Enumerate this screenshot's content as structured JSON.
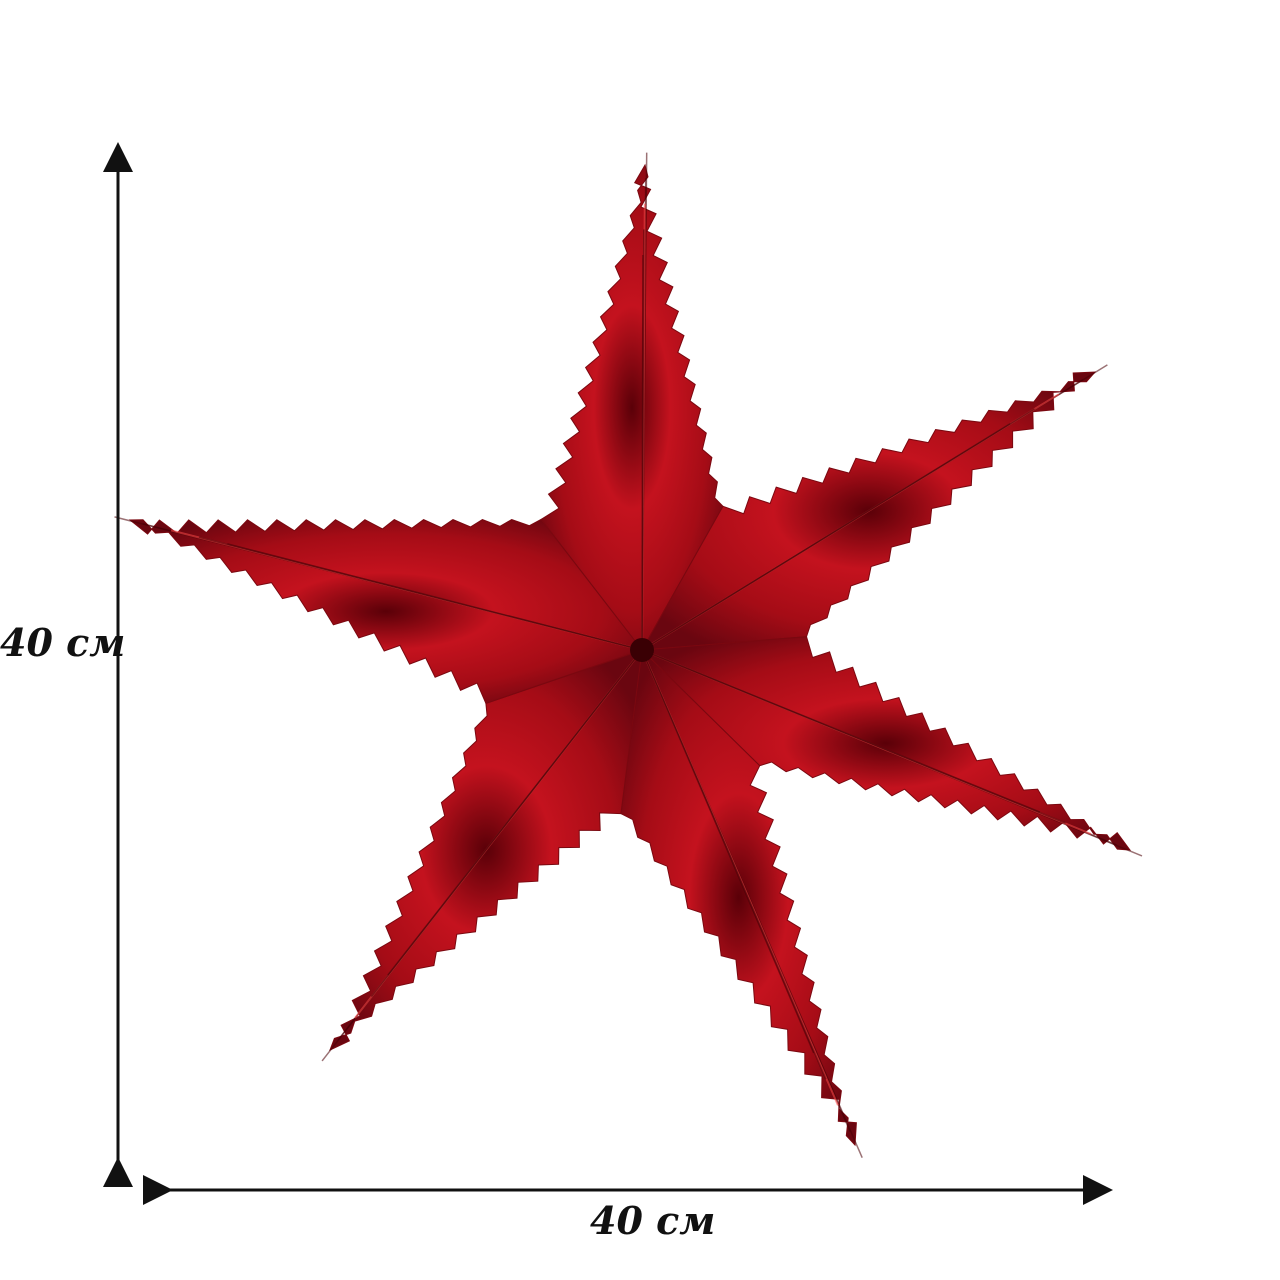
{
  "product": {
    "name_icon": "red-foil-star-ornament",
    "color": "#b0101a",
    "highlight_color": "#ff3b3b",
    "shadow_color": "#4a0006"
  },
  "dimensions": {
    "height_label": "40 см",
    "width_label": "40 см",
    "arrow_color": "#111111"
  }
}
